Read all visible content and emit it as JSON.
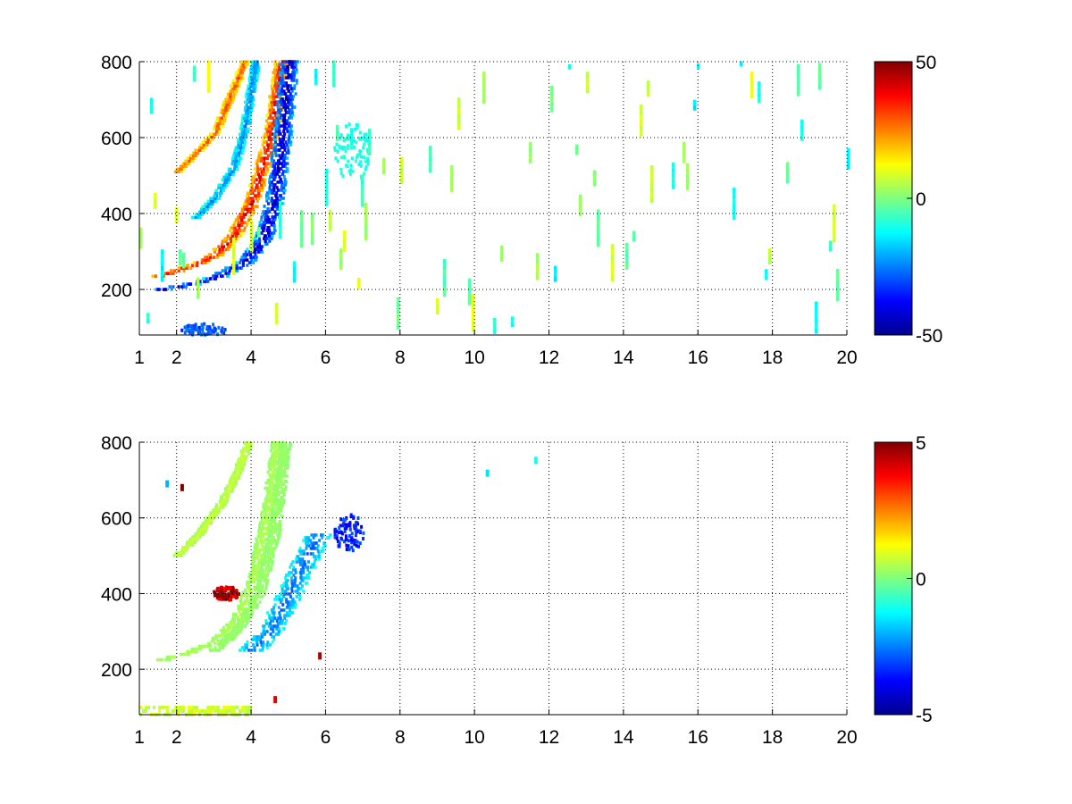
{
  "chart_data": [
    {
      "type": "heatmap",
      "title": "",
      "xlabel": "",
      "ylabel": "",
      "xlim": [
        1,
        20
      ],
      "ylim": [
        80,
        800
      ],
      "grid": true,
      "grid_style": "dotted",
      "colormap": "jet",
      "x_ticks": [
        1,
        2,
        4,
        6,
        8,
        10,
        12,
        14,
        16,
        18,
        20
      ],
      "x_tick_labels": [
        "1",
        "2",
        "4",
        "6",
        "8",
        "10",
        "12",
        "14",
        "16",
        "18",
        "20"
      ],
      "y_ticks": [
        200,
        400,
        600,
        800
      ],
      "y_tick_labels": [
        "200",
        "400",
        "600",
        "800"
      ],
      "colorbar": {
        "range": [
          -50,
          50
        ],
        "ticks": [
          -50,
          0,
          50
        ],
        "tick_labels": [
          "-50",
          "0",
          "50"
        ]
      },
      "features": [
        {
          "kind": "ridge",
          "x": [
            1.5,
            2.0,
            2.5,
            3.0,
            3.5,
            4.0,
            4.5,
            4.8
          ],
          "y": [
            235,
            250,
            265,
            290,
            340,
            430,
            600,
            800
          ],
          "value": 40,
          "width": 0.2
        },
        {
          "kind": "ridge",
          "x": [
            1.6,
            2.2,
            3.0,
            3.8,
            4.3,
            4.6,
            4.8,
            5.0
          ],
          "y": [
            200,
            210,
            230,
            270,
            330,
            430,
            580,
            800
          ],
          "value": -45,
          "width": 0.25
        },
        {
          "kind": "ridge",
          "x": [
            2.0,
            2.5,
            3.0,
            3.3,
            3.6,
            3.8
          ],
          "y": [
            510,
            560,
            610,
            680,
            750,
            800
          ],
          "value": 30,
          "width": 0.12
        },
        {
          "kind": "ridge",
          "x": [
            2.5,
            3.0,
            3.5,
            3.8,
            4.1
          ],
          "y": [
            390,
            440,
            520,
            620,
            800
          ],
          "value": -25,
          "width": 0.12
        },
        {
          "kind": "blob",
          "x": 2.7,
          "y": 90,
          "rx": 0.6,
          "ry": 20,
          "value": -30
        },
        {
          "kind": "blob",
          "x": 6.7,
          "y": 560,
          "rx": 0.5,
          "ry": 80,
          "value": -10
        },
        {
          "kind": "noise",
          "x_from": 1,
          "x_to": 20,
          "y_from": 80,
          "y_to": 800,
          "value_range": [
            -15,
            12
          ],
          "density": 0.08
        }
      ]
    },
    {
      "type": "heatmap",
      "title": "",
      "xlabel": "",
      "ylabel": "",
      "xlim": [
        1,
        20
      ],
      "ylim": [
        80,
        800
      ],
      "grid": true,
      "grid_style": "dotted",
      "colormap": "jet",
      "x_ticks": [
        1,
        2,
        4,
        6,
        8,
        10,
        12,
        14,
        16,
        18,
        20
      ],
      "x_tick_labels": [
        "1",
        "2",
        "4",
        "6",
        "8",
        "10",
        "12",
        "14",
        "16",
        "18",
        "20"
      ],
      "y_ticks": [
        200,
        400,
        600,
        800
      ],
      "y_tick_labels": [
        "200",
        "400",
        "600",
        "800"
      ],
      "colorbar": {
        "range": [
          -5,
          5
        ],
        "ticks": [
          -5,
          0,
          5
        ],
        "tick_labels": [
          "-5",
          "0",
          "5"
        ]
      },
      "features": [
        {
          "kind": "ridge",
          "x": [
            1.6,
            2.2,
            3.0,
            3.6,
            4.0,
            4.4,
            4.7
          ],
          "y": [
            225,
            240,
            270,
            330,
            420,
            600,
            800
          ],
          "value": 0.5,
          "width": 0.18
        },
        {
          "kind": "ridge",
          "x": [
            2.0,
            2.6,
            3.2,
            3.6,
            3.9
          ],
          "y": [
            500,
            560,
            640,
            720,
            800
          ],
          "value": 0.8,
          "width": 0.12
        },
        {
          "kind": "ridge",
          "x": [
            3.0,
            3.6,
            4.2,
            4.6,
            4.9
          ],
          "y": [
            250,
            300,
            400,
            560,
            800
          ],
          "value": 0.3,
          "width": 0.15
        },
        {
          "kind": "ridge",
          "x": [
            4.0,
            4.5,
            5.0,
            5.4,
            5.8
          ],
          "y": [
            250,
            300,
            400,
            480,
            560
          ],
          "value": -2.8,
          "width": 0.35
        },
        {
          "kind": "blob",
          "x": 3.3,
          "y": 400,
          "rx": 0.35,
          "ry": 18,
          "value": 4.5
        },
        {
          "kind": "blob",
          "x": 6.6,
          "y": 560,
          "rx": 0.4,
          "ry": 50,
          "value": -3.5
        },
        {
          "kind": "band",
          "x_from": 1.0,
          "x_to": 4.0,
          "y_from": 80,
          "y_to": 100,
          "value": 0.8
        },
        {
          "kind": "dots",
          "points": [
            [
              1.7,
              690
            ],
            [
              2.1,
              680
            ],
            [
              5.8,
              235
            ],
            [
              4.6,
              120
            ],
            [
              10.3,
              718
            ],
            [
              11.6,
              752
            ]
          ],
          "values": [
            -2,
            5,
            4.5,
            4,
            -1.5,
            -1
          ]
        }
      ]
    }
  ]
}
